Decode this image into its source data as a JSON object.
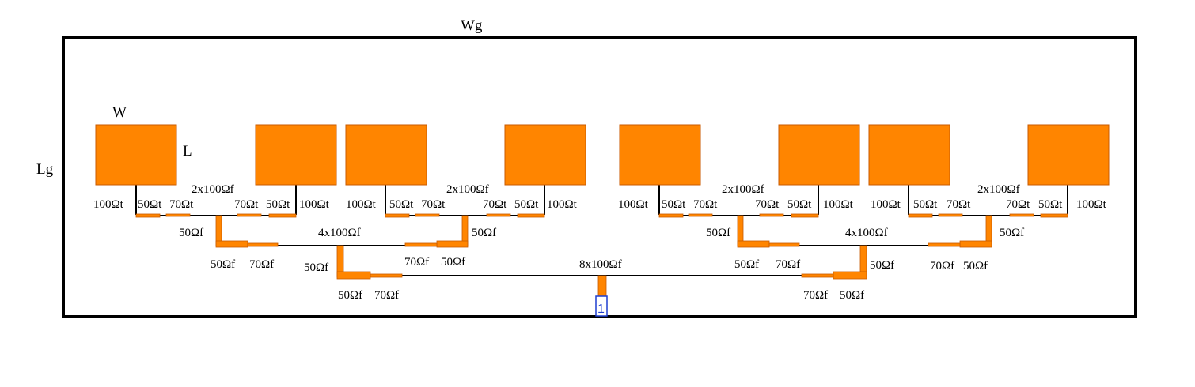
{
  "colors": {
    "patch": "#ff8500",
    "patch_edge": "#c85a00",
    "feed_line": "#000000",
    "frame": "#000000",
    "port": "#1f3fd0"
  },
  "dimensions": {
    "ground_width": "Wg",
    "ground_length": "Lg",
    "patch_width": "W",
    "patch_length": "L"
  },
  "port": {
    "label": "1"
  },
  "groups": [
    {
      "edge_labels": [
        "100Ωt",
        "50Ωt",
        "70Ωt",
        "70Ωt",
        "50Ωt",
        "100Ωt"
      ],
      "pair_label": "2x100Ωf",
      "riser_labels": [
        "50Ωf",
        "50Ωf"
      ],
      "taper_labels": [
        "50Ωf",
        "70Ωf",
        "70Ωf",
        "50Ωf"
      ]
    },
    {
      "edge_labels": [
        "100Ωt",
        "50Ωt",
        "70Ωt",
        "70Ωt",
        "50Ωt",
        "100Ωt"
      ],
      "pair_label": "2x100Ωf",
      "riser_labels": [
        "50Ωf",
        "50Ωf"
      ],
      "taper_labels": [
        "50Ωf",
        "70Ωf",
        "70Ωf",
        "50Ωf"
      ]
    }
  ],
  "level2": {
    "label": "4x100Ωf",
    "riser_labels": [
      "50Ωf",
      "50Ωf"
    ],
    "taper_labels": [
      "50Ωf",
      "70Ωf",
      "70Ωf",
      "50Ωf"
    ]
  },
  "level3": {
    "label": "8x100Ωf"
  }
}
